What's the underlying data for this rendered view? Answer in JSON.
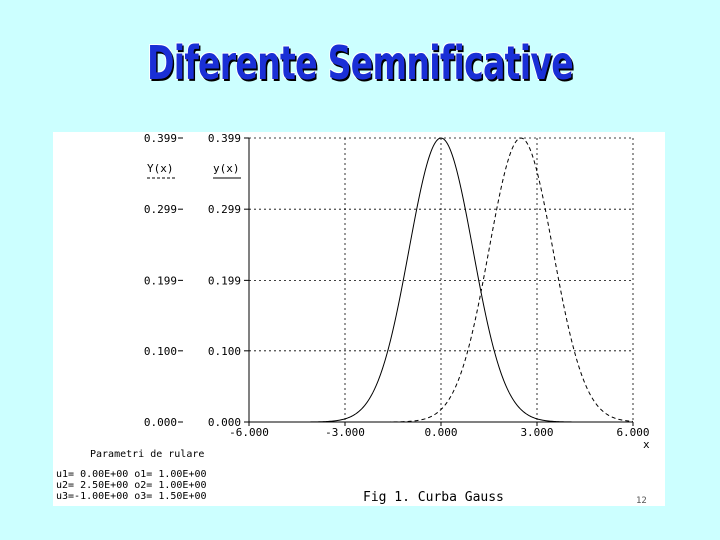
{
  "slide_title": "Diferente Semnificative",
  "figure_caption": "Fig 1. Curba Gauss",
  "slide_number": "12",
  "params": {
    "title": "Parametri de rulare",
    "lines": [
      "u1= 0.00E+00 o1= 1.00E+00",
      "u2= 2.50E+00 o2= 1.00E+00",
      "u3=-1.00E+00 o3= 1.50E+00"
    ]
  },
  "chart_data": {
    "type": "line",
    "ylabel_left": "Y(x)",
    "ylabel_right": "y(x)",
    "xlabel": "x",
    "xlim": [
      -6,
      6
    ],
    "ylim": [
      0,
      0.399
    ],
    "x_ticks": [
      "-6.000",
      "-3.000",
      "0.000",
      "3.000",
      "6.000"
    ],
    "y_ticks": [
      "0.000",
      "0.100",
      "0.199",
      "0.299",
      "0.399"
    ],
    "y_tick_values": [
      0,
      0.1,
      0.199,
      0.299,
      0.399
    ],
    "grid": true,
    "series": [
      {
        "style": "solid",
        "color": "#000000",
        "mean": 0.0,
        "sigma": 1.0
      },
      {
        "style": "dashed",
        "color": "#000000",
        "mean": 2.5,
        "sigma": 1.0
      }
    ]
  }
}
